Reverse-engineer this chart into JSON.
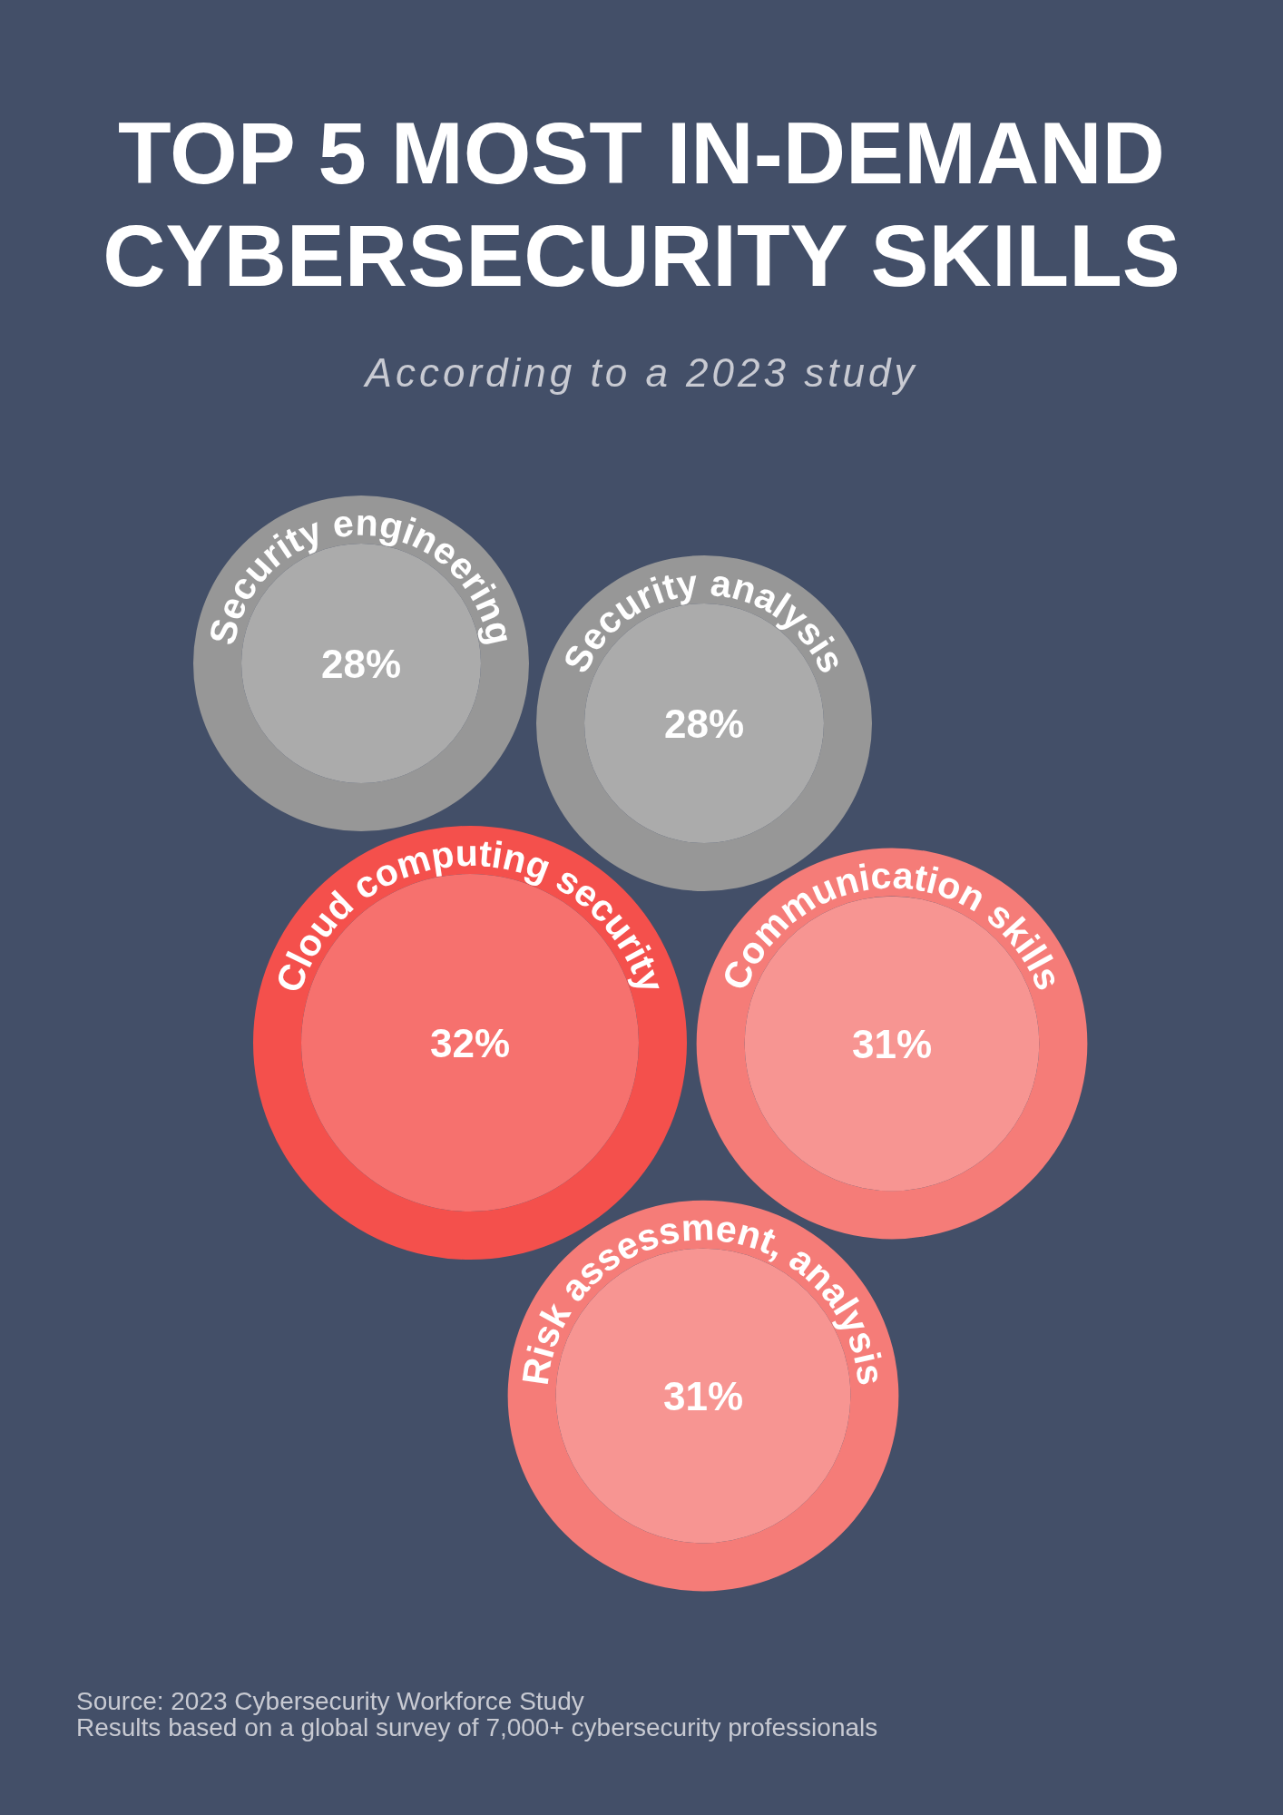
{
  "chart_data": {
    "type": "other",
    "title": "TOP 5 MOST IN-DEMAND CYBERSECURITY SKILLS",
    "subtitle": "According to a 2023 study",
    "categories": [
      "Security engineering",
      "Security analysis",
      "Cloud computing security",
      "Communication skills",
      "Risk assessment, analysis"
    ],
    "values": [
      28,
      28,
      32,
      31,
      31
    ],
    "value_labels": [
      "28%",
      "28%",
      "32%",
      "31%",
      "31%"
    ],
    "colors": [
      "#ababab",
      "#ababab",
      "#f6716e",
      "#f79592",
      "#f79592"
    ],
    "annotations": [
      "Source: 2023 Cybersecurity Workforce Study",
      "Results based on a global survey of 7,000+ cybersecurity professionals"
    ]
  }
}
